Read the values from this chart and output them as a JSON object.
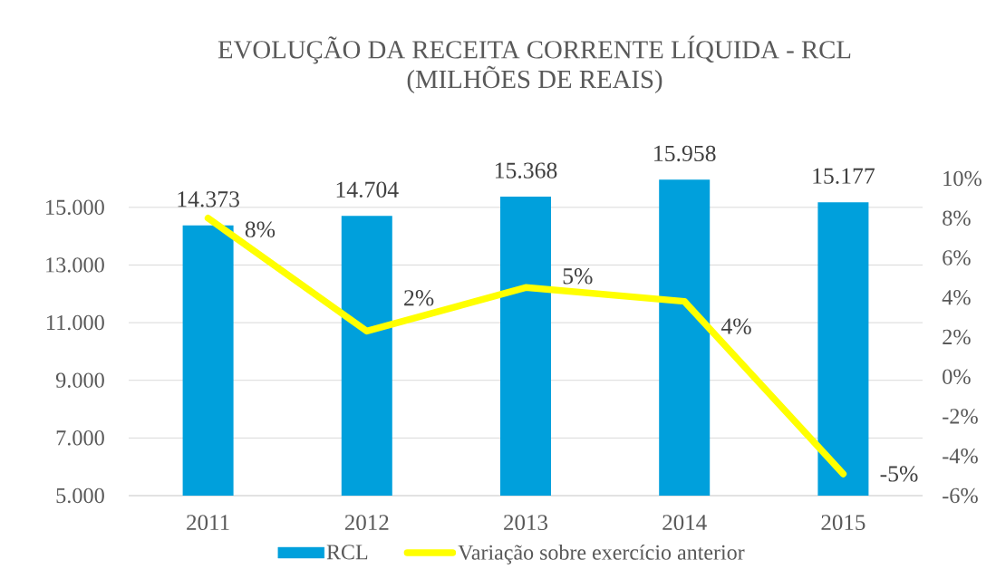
{
  "chart_data": {
    "type": "bar",
    "title": "EVOLUÇÃO DA RECEITA CORRENTE LÍQUIDA - RCL",
    "subtitle": "(MILHÕES DE REAIS)",
    "categories": [
      "2011",
      "2012",
      "2013",
      "2014",
      "2015"
    ],
    "series": [
      {
        "name": "RCL",
        "color": "#00a0dc",
        "values": [
          14373,
          14704,
          15368,
          15958,
          15177
        ],
        "value_labels": [
          "14.373",
          "14.704",
          "15.368",
          "15.958",
          "15.177"
        ]
      },
      {
        "name": "Variação sobre exercício anterior",
        "type": "line",
        "axis": "y2",
        "color": "#ffff00",
        "values": [
          8.0,
          2.3,
          4.5,
          3.8,
          -4.9
        ],
        "value_labels": [
          "8%",
          "2%",
          "5%",
          "4%",
          "-5%"
        ]
      }
    ],
    "ylim": [
      5000,
      16000
    ],
    "yticks": [
      {
        "value": 5000,
        "label": "5.000"
      },
      {
        "value": 7000,
        "label": "7.000"
      },
      {
        "value": 9000,
        "label": "9.000"
      },
      {
        "value": 11000,
        "label": "11.000"
      },
      {
        "value": 13000,
        "label": "13.000"
      },
      {
        "value": 15000,
        "label": "15.000"
      }
    ],
    "y2lim": [
      -6,
      10
    ],
    "y2ticks": [
      {
        "value": -6,
        "label": "-6%"
      },
      {
        "value": -4,
        "label": "-4%"
      },
      {
        "value": -2,
        "label": "-2%"
      },
      {
        "value": 0,
        "label": "0%"
      },
      {
        "value": 2,
        "label": "2%"
      },
      {
        "value": 4,
        "label": "4%"
      },
      {
        "value": 6,
        "label": "6%"
      },
      {
        "value": 8,
        "label": "8%"
      },
      {
        "value": 10,
        "label": "10%"
      }
    ],
    "grid": "y",
    "legend": "bottom"
  }
}
